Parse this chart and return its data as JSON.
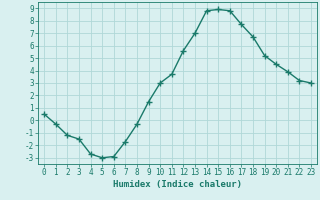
{
  "x": [
    0,
    1,
    2,
    3,
    4,
    5,
    6,
    7,
    8,
    9,
    10,
    11,
    12,
    13,
    14,
    15,
    16,
    17,
    18,
    19,
    20,
    21,
    22,
    23
  ],
  "y": [
    0.5,
    -0.3,
    -1.2,
    -1.5,
    -2.7,
    -3.0,
    -2.9,
    -1.7,
    -0.3,
    1.5,
    3.0,
    3.7,
    5.6,
    7.0,
    8.8,
    8.9,
    8.8,
    7.7,
    6.7,
    5.2,
    4.5,
    3.9,
    3.2,
    3.0
  ],
  "line_color": "#1a7a6a",
  "bg_color": "#d9f0f0",
  "grid_color": "#b0d8d8",
  "xlabel": "Humidex (Indice chaleur)",
  "ylim": [
    -3.5,
    9.5
  ],
  "xlim": [
    -0.5,
    23.5
  ],
  "yticks": [
    -3,
    -2,
    -1,
    0,
    1,
    2,
    3,
    4,
    5,
    6,
    7,
    8,
    9
  ],
  "xticks": [
    0,
    1,
    2,
    3,
    4,
    5,
    6,
    7,
    8,
    9,
    10,
    11,
    12,
    13,
    14,
    15,
    16,
    17,
    18,
    19,
    20,
    21,
    22,
    23
  ],
  "axis_color": "#1a7a6a",
  "tick_color": "#1a7a6a",
  "label_color": "#1a7a6a",
  "xlabel_fontsize": 6.5,
  "tick_fontsize": 5.5
}
